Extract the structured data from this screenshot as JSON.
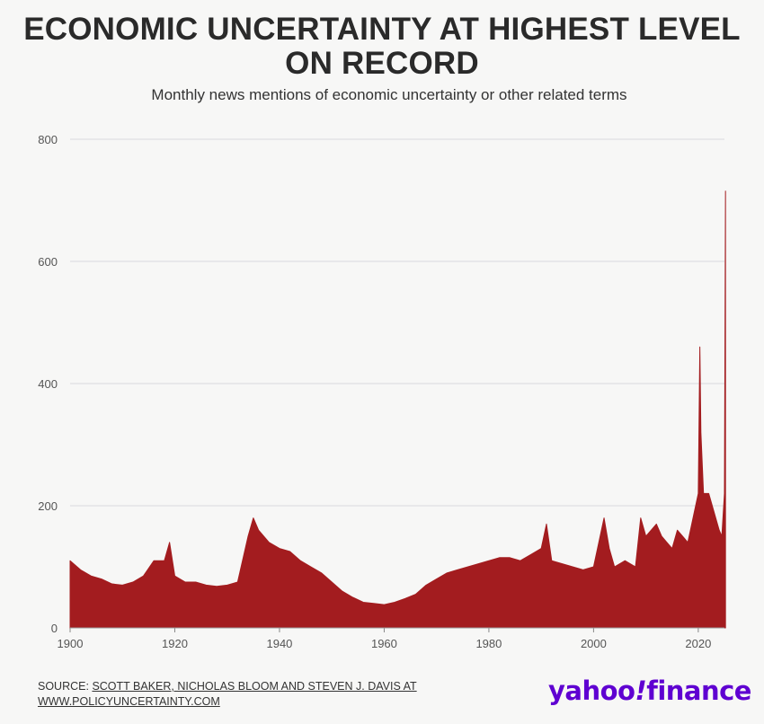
{
  "title_line1": "ECONOMIC UNCERTAINTY AT HIGHEST LEVEL",
  "title_line2": "ON RECORD",
  "subtitle": "Monthly news mentions of economic uncertainty or other related terms",
  "source_prefix": "SOURCE: ",
  "source_line1": "SCOTT BAKER, NICHOLAS BLOOM AND STEVEN J. DAVIS AT",
  "source_line2": "WWW.POLICYUNCERTAINTY.COM",
  "logo_text": "yahoo",
  "logo_mark": "!",
  "logo_finance": "finance",
  "colors": {
    "bars": "#a31c1f",
    "grid": "#d8dade",
    "brand": "#5f01d1"
  },
  "chart_data": {
    "type": "area",
    "x_unit": "year",
    "ylim": [
      0,
      800
    ],
    "yticks": [
      0,
      200,
      400,
      600,
      800
    ],
    "xlim": [
      1900,
      2025
    ],
    "xticks": [
      1900,
      1920,
      1940,
      1960,
      1980,
      2000,
      2020
    ],
    "grid": true,
    "legend": "none",
    "series": [
      {
        "x": [
          1900,
          1902,
          1904,
          1906,
          1908,
          1910,
          1912,
          1914,
          1916,
          1918,
          1919,
          1920,
          1922,
          1924,
          1926,
          1928,
          1930,
          1932,
          1934,
          1935,
          1936,
          1938,
          1940,
          1942,
          1944,
          1946,
          1948,
          1950,
          1952,
          1954,
          1956,
          1958,
          1960,
          1962,
          1964,
          1966,
          1968,
          1970,
          1972,
          1974,
          1976,
          1978,
          1980,
          1982,
          1984,
          1986,
          1988,
          1990,
          1991,
          1992,
          1994,
          1996,
          1998,
          2000,
          2001,
          2002,
          2003,
          2004,
          2006,
          2008,
          2009,
          2010,
          2011,
          2012,
          2013,
          2014,
          2015,
          2016,
          2017,
          2018,
          2019,
          2020,
          2020.3,
          2020.5,
          2021,
          2022,
          2023,
          2024,
          2024.5,
          2025,
          2025.2
        ],
        "y": [
          110,
          95,
          85,
          80,
          72,
          70,
          75,
          85,
          110,
          110,
          140,
          85,
          75,
          75,
          70,
          68,
          70,
          75,
          150,
          180,
          160,
          140,
          130,
          125,
          110,
          100,
          90,
          75,
          60,
          50,
          42,
          40,
          38,
          42,
          48,
          55,
          70,
          80,
          90,
          95,
          100,
          105,
          110,
          115,
          115,
          110,
          120,
          130,
          170,
          110,
          105,
          100,
          95,
          100,
          140,
          180,
          130,
          100,
          110,
          100,
          180,
          150,
          160,
          170,
          150,
          140,
          130,
          160,
          150,
          140,
          180,
          220,
          460,
          320,
          220,
          220,
          190,
          160,
          150,
          220,
          715
        ]
      }
    ]
  }
}
